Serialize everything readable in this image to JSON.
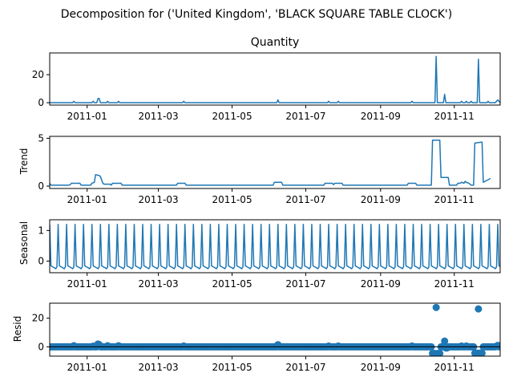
{
  "figure": {
    "suptitle": "Decomposition for ('United Kingdom', 'BLACK SQUARE TABLE CLOCK')",
    "line_color": "#1f77b4"
  },
  "chart_data": [
    {
      "type": "line",
      "title": "Quantity",
      "ylabel": "",
      "xlim": [
        "2010-12-01",
        "2011-12-09"
      ],
      "ylim": [
        -1.7,
        35.5
      ],
      "yticks": [
        0,
        20
      ],
      "xticks": [
        "2011-01",
        "2011-03",
        "2011-05",
        "2011-07",
        "2011-09",
        "2011-11"
      ],
      "points": [
        [
          "2010-12-01",
          0
        ],
        [
          "2010-12-20",
          0
        ],
        [
          "2010-12-21",
          1
        ],
        [
          "2010-12-22",
          0
        ],
        [
          "2011-01-05",
          0
        ],
        [
          "2011-01-06",
          1
        ],
        [
          "2011-01-07",
          0
        ],
        [
          "2011-01-09",
          0
        ],
        [
          "2011-01-10",
          3
        ],
        [
          "2011-01-11",
          3
        ],
        [
          "2011-01-12",
          0
        ],
        [
          "2011-01-17",
          0
        ],
        [
          "2011-01-18",
          1
        ],
        [
          "2011-01-19",
          0
        ],
        [
          "2011-01-26",
          0
        ],
        [
          "2011-01-27",
          1
        ],
        [
          "2011-01-28",
          0
        ],
        [
          "2011-03-21",
          0
        ],
        [
          "2011-03-22",
          1
        ],
        [
          "2011-03-23",
          0
        ],
        [
          "2011-06-07",
          0
        ],
        [
          "2011-06-08",
          2
        ],
        [
          "2011-06-09",
          0
        ],
        [
          "2011-07-19",
          0
        ],
        [
          "2011-07-20",
          1
        ],
        [
          "2011-07-21",
          0
        ],
        [
          "2011-07-27",
          0
        ],
        [
          "2011-07-28",
          1
        ],
        [
          "2011-07-29",
          0
        ],
        [
          "2011-09-26",
          0
        ],
        [
          "2011-09-27",
          1
        ],
        [
          "2011-09-28",
          0
        ],
        [
          "2011-10-16",
          0
        ],
        [
          "2011-10-17",
          33
        ],
        [
          "2011-10-18",
          0
        ],
        [
          "2011-10-23",
          0
        ],
        [
          "2011-10-24",
          6
        ],
        [
          "2011-10-25",
          0
        ],
        [
          "2011-11-06",
          0
        ],
        [
          "2011-11-07",
          1
        ],
        [
          "2011-11-08",
          0
        ],
        [
          "2011-11-10",
          0
        ],
        [
          "2011-11-11",
          1
        ],
        [
          "2011-11-12",
          0
        ],
        [
          "2011-11-14",
          0
        ],
        [
          "2011-11-15",
          1
        ],
        [
          "2011-11-16",
          0
        ],
        [
          "2011-11-20",
          0
        ],
        [
          "2011-11-21",
          31
        ],
        [
          "2011-11-22",
          0
        ],
        [
          "2011-11-28",
          0
        ],
        [
          "2011-11-29",
          1
        ],
        [
          "2011-11-30",
          0
        ],
        [
          "2011-12-05",
          0
        ],
        [
          "2011-12-06",
          1
        ],
        [
          "2011-12-07",
          2
        ],
        [
          "2011-12-09",
          0
        ]
      ]
    },
    {
      "type": "line",
      "title": "",
      "ylabel": "Trend",
      "xlim": [
        "2010-12-01",
        "2011-12-09"
      ],
      "ylim": [
        -0.25,
        5.2
      ],
      "yticks": [
        0,
        5
      ],
      "xticks": [
        "2011-01",
        "2011-03",
        "2011-05",
        "2011-07",
        "2011-09",
        "2011-11"
      ],
      "points": [
        [
          "2010-12-01",
          0.3
        ],
        [
          "2010-12-02",
          0.1
        ],
        [
          "2010-12-17",
          0.1
        ],
        [
          "2010-12-18",
          0.15
        ],
        [
          "2010-12-19",
          0.3
        ],
        [
          "2010-12-26",
          0.3
        ],
        [
          "2010-12-27",
          0.1
        ],
        [
          "2011-01-04",
          0.1
        ],
        [
          "2011-01-05",
          0.3
        ],
        [
          "2011-01-07",
          0.4
        ],
        [
          "2011-01-08",
          1.2
        ],
        [
          "2011-01-11",
          1.1
        ],
        [
          "2011-01-12",
          1.0
        ],
        [
          "2011-01-14",
          0.3
        ],
        [
          "2011-01-15",
          0.2
        ],
        [
          "2011-01-20",
          0.2
        ],
        [
          "2011-01-21",
          0.1
        ],
        [
          "2011-01-22",
          0.3
        ],
        [
          "2011-01-29",
          0.3
        ],
        [
          "2011-01-30",
          0.1
        ],
        [
          "2011-03-16",
          0.1
        ],
        [
          "2011-03-17",
          0.3
        ],
        [
          "2011-03-23",
          0.3
        ],
        [
          "2011-03-24",
          0.1
        ],
        [
          "2011-06-04",
          0.1
        ],
        [
          "2011-06-05",
          0.4
        ],
        [
          "2011-06-11",
          0.4
        ],
        [
          "2011-06-12",
          0.1
        ],
        [
          "2011-07-16",
          0.1
        ],
        [
          "2011-07-17",
          0.3
        ],
        [
          "2011-07-23",
          0.3
        ],
        [
          "2011-07-24",
          0.15
        ],
        [
          "2011-07-25",
          0.3
        ],
        [
          "2011-07-31",
          0.3
        ],
        [
          "2011-08-01",
          0.1
        ],
        [
          "2011-09-23",
          0.1
        ],
        [
          "2011-09-24",
          0.3
        ],
        [
          "2011-09-30",
          0.3
        ],
        [
          "2011-10-01",
          0.1
        ],
        [
          "2011-10-13",
          0.1
        ],
        [
          "2011-10-14",
          4.8
        ],
        [
          "2011-10-20",
          4.8
        ],
        [
          "2011-10-21",
          0.9
        ],
        [
          "2011-10-27",
          0.9
        ],
        [
          "2011-10-28",
          0.1
        ],
        [
          "2011-11-03",
          0.1
        ],
        [
          "2011-11-04",
          0.3
        ],
        [
          "2011-11-06",
          0.3
        ],
        [
          "2011-11-07",
          0.4
        ],
        [
          "2011-11-09",
          0.3
        ],
        [
          "2011-11-10",
          0.5
        ],
        [
          "2011-11-11",
          0.4
        ],
        [
          "2011-11-13",
          0.3
        ],
        [
          "2011-11-14",
          0.2
        ],
        [
          "2011-11-15",
          0.1
        ],
        [
          "2011-11-17",
          0.1
        ],
        [
          "2011-11-18",
          4.5
        ],
        [
          "2011-11-24",
          4.6
        ],
        [
          "2011-11-25",
          0.4
        ],
        [
          "2011-11-28",
          0.6
        ],
        [
          "2011-12-01",
          0.8
        ]
      ]
    },
    {
      "type": "line",
      "title": "",
      "ylabel": "Seasonal",
      "xlim": [
        "2010-12-01",
        "2011-12-09"
      ],
      "ylim": [
        -0.38,
        1.35
      ],
      "yticks": [
        0,
        1
      ],
      "xticks": [
        "2011-01",
        "2011-03",
        "2011-05",
        "2011-07",
        "2011-09",
        "2011-11"
      ],
      "seasonal_pattern": [
        1.2,
        -0.15,
        -0.18,
        -0.2,
        -0.22,
        -0.25,
        -0.19
      ],
      "period_days": 7
    },
    {
      "type": "scatter",
      "title": "",
      "ylabel": "Resid",
      "xlim": [
        "2010-12-01",
        "2011-12-09"
      ],
      "ylim": [
        -6.5,
        30.5
      ],
      "yticks": [
        0,
        20
      ],
      "xticks": [
        "2011-01",
        "2011-03",
        "2011-05",
        "2011-07",
        "2011-09",
        "2011-11"
      ],
      "baseline_residual": 0,
      "outliers": [
        [
          "2010-12-21",
          0.8
        ],
        [
          "2011-01-06",
          0.5
        ],
        [
          "2011-01-10",
          2.0
        ],
        [
          "2011-01-11",
          1.5
        ],
        [
          "2011-01-18",
          0.8
        ],
        [
          "2011-01-27",
          0.8
        ],
        [
          "2011-03-22",
          0.6
        ],
        [
          "2011-06-08",
          1.5
        ],
        [
          "2011-07-20",
          0.6
        ],
        [
          "2011-07-28",
          0.6
        ],
        [
          "2011-09-27",
          0.6
        ],
        [
          "2011-10-14",
          -4.6
        ],
        [
          "2011-10-15",
          -4.6
        ],
        [
          "2011-10-16",
          -4.6
        ],
        [
          "2011-10-17",
          27.5
        ],
        [
          "2011-10-18",
          -4.6
        ],
        [
          "2011-10-19",
          -4.6
        ],
        [
          "2011-10-20",
          -4.6
        ],
        [
          "2011-10-24",
          4.0
        ],
        [
          "2011-10-25",
          -0.8
        ],
        [
          "2011-10-26",
          -0.8
        ],
        [
          "2011-11-07",
          0.6
        ],
        [
          "2011-11-11",
          0.6
        ],
        [
          "2011-11-18",
          -4.4
        ],
        [
          "2011-11-19",
          -4.4
        ],
        [
          "2011-11-20",
          -4.4
        ],
        [
          "2011-11-21",
          26.5
        ],
        [
          "2011-11-22",
          -4.4
        ],
        [
          "2011-11-23",
          -4.4
        ],
        [
          "2011-11-24",
          -4.4
        ],
        [
          "2011-12-06",
          0.5
        ],
        [
          "2011-12-07",
          1.0
        ]
      ]
    }
  ]
}
